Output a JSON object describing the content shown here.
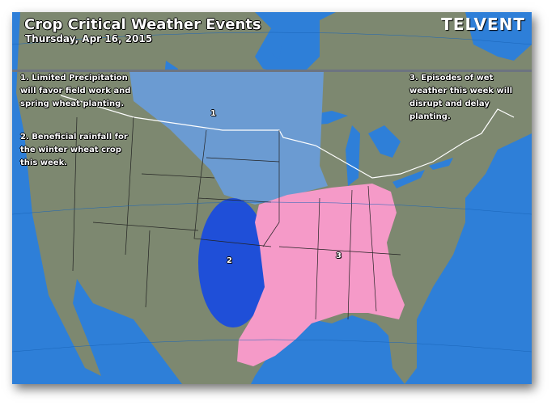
{
  "title": "Crop Critical Weather Events",
  "date": "Thursday, Apr 16, 2015",
  "logo": "TELVENT",
  "notes": [
    {
      "label": "1",
      "text": "1. Limited Precipitation will favor field work and spring wheat planting."
    },
    {
      "label": "2",
      "text": "2. Beneficial rainfall for the winter wheat crop this week."
    },
    {
      "label": "3",
      "text": "3. Episodes of wet weather this week will disrupt and delay planting."
    }
  ],
  "colors": {
    "ocean": "#2e7fd8",
    "land": "#7d8870",
    "limited_precip": "#6b9bd2",
    "beneficial_rain": "#1f4fd8",
    "wet_weather": "#f59ac8"
  }
}
